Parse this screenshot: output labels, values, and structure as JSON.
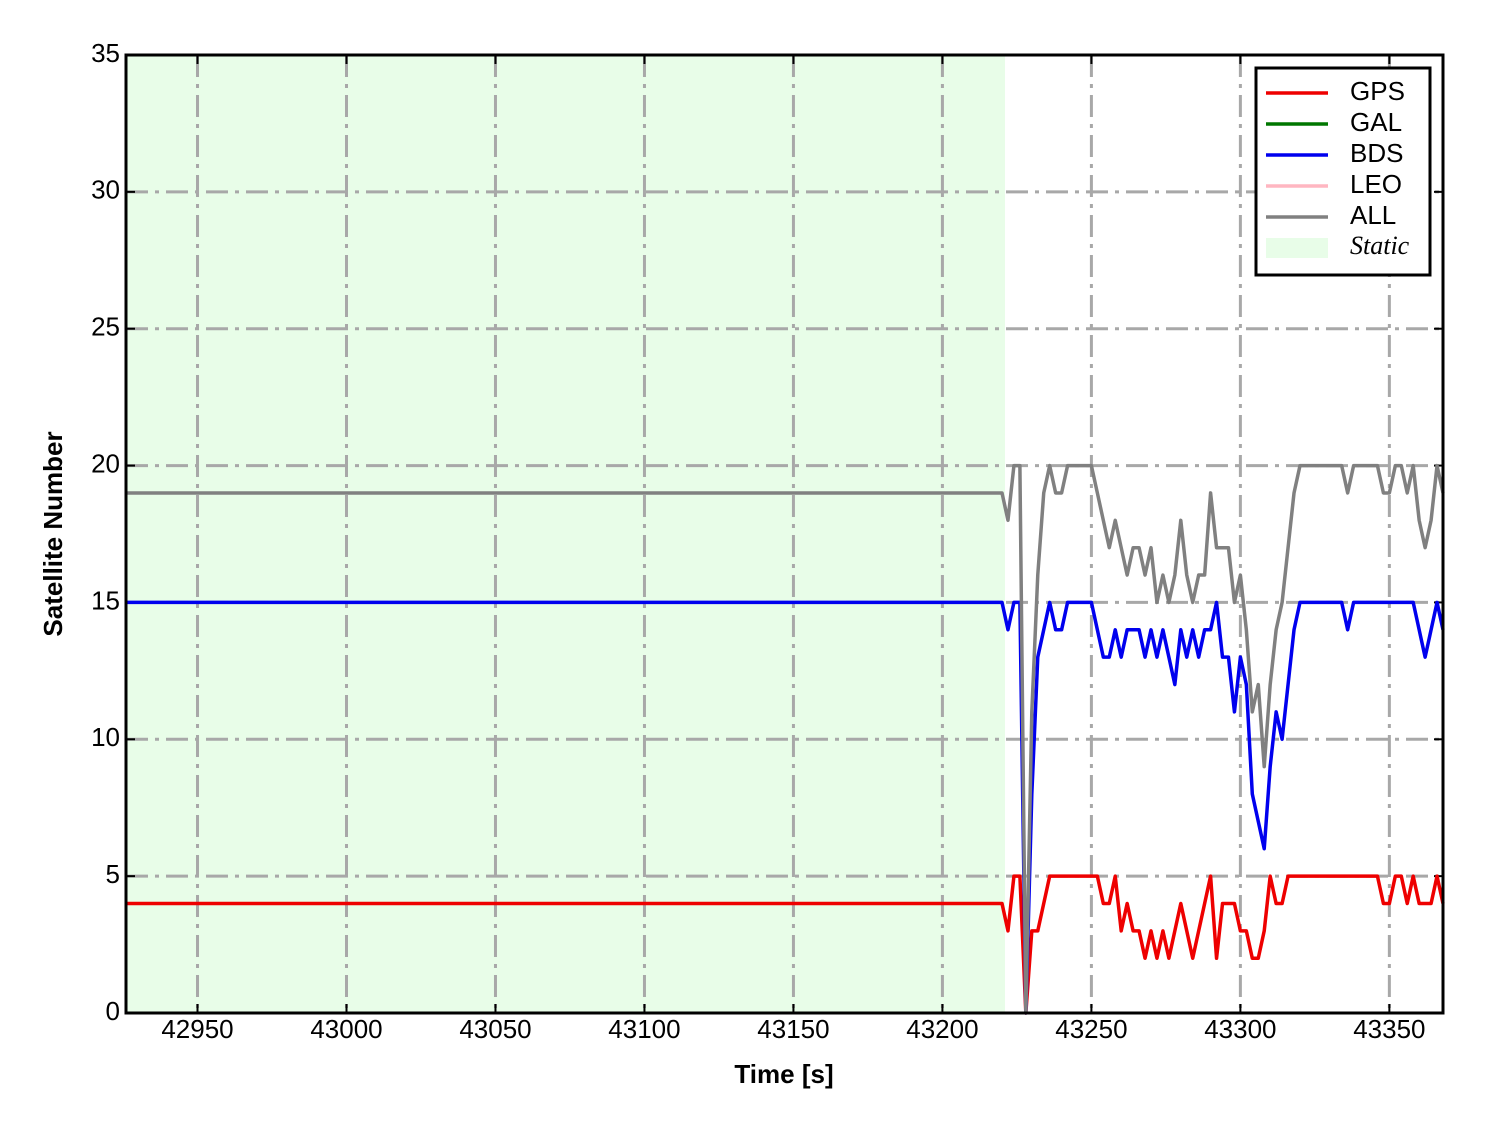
{
  "chart_data": {
    "type": "line",
    "xlabel": "Time [s]",
    "ylabel": "Satellite Number",
    "x": [
      42926,
      43220,
      43222,
      43224,
      43226,
      43228,
      43230,
      43232,
      43234,
      43236,
      43238,
      43240,
      43242,
      43244,
      43246,
      43248,
      43250,
      43252,
      43254,
      43256,
      43258,
      43260,
      43262,
      43264,
      43266,
      43268,
      43270,
      43272,
      43274,
      43276,
      43278,
      43280,
      43282,
      43284,
      43286,
      43288,
      43290,
      43292,
      43294,
      43296,
      43298,
      43300,
      43302,
      43304,
      43306,
      43308,
      43310,
      43312,
      43314,
      43316,
      43318,
      43320,
      43322,
      43324,
      43326,
      43328,
      43330,
      43332,
      43334,
      43336,
      43338,
      43340,
      43342,
      43344,
      43346,
      43348,
      43350,
      43352,
      43354,
      43356,
      43358,
      43360,
      43362,
      43364,
      43366,
      43368
    ],
    "series": [
      {
        "name": "GPS",
        "color": "#ee0000",
        "values": [
          4,
          4,
          3,
          5,
          5,
          0,
          3,
          3,
          4,
          5,
          5,
          5,
          5,
          5,
          5,
          5,
          5,
          5,
          4,
          4,
          5,
          3,
          4,
          3,
          3,
          2,
          3,
          2,
          3,
          2,
          3,
          4,
          3,
          2,
          3,
          4,
          5,
          2,
          4,
          4,
          4,
          3,
          3,
          2,
          2,
          3,
          5,
          4,
          4,
          5,
          5,
          5,
          5,
          5,
          5,
          5,
          5,
          5,
          5,
          5,
          5,
          5,
          5,
          5,
          5,
          4,
          4,
          5,
          5,
          4,
          5,
          4,
          4,
          4,
          5,
          4
        ]
      },
      {
        "name": "GAL",
        "color": "#007700",
        "values": [
          null,
          null,
          null,
          null,
          null,
          null,
          null,
          null,
          null,
          null,
          null,
          null,
          null,
          null,
          null,
          null,
          null,
          null,
          null,
          null,
          null,
          null,
          null,
          null,
          null,
          null,
          null,
          null,
          null,
          null,
          null,
          null,
          null,
          null,
          null,
          null,
          null,
          null,
          null,
          null,
          null,
          null,
          null,
          null,
          null,
          null,
          null,
          null,
          null,
          null,
          null,
          null,
          null,
          null,
          null,
          null,
          null,
          null,
          null,
          null,
          null,
          null,
          null,
          null,
          null,
          null,
          null,
          null,
          null,
          null,
          null,
          null,
          null,
          null,
          null,
          null
        ]
      },
      {
        "name": "BDS",
        "color": "#0000ee",
        "values": [
          15,
          15,
          14,
          15,
          15,
          0,
          8,
          13,
          14,
          15,
          14,
          14,
          15,
          15,
          15,
          15,
          15,
          14,
          13,
          13,
          14,
          13,
          14,
          14,
          14,
          13,
          14,
          13,
          14,
          13,
          12,
          14,
          13,
          14,
          13,
          14,
          14,
          15,
          13,
          13,
          11,
          13,
          12,
          8,
          7,
          6,
          9,
          11,
          10,
          12,
          14,
          15,
          15,
          15,
          15,
          15,
          15,
          15,
          15,
          14,
          15,
          15,
          15,
          15,
          15,
          15,
          15,
          15,
          15,
          15,
          15,
          14,
          13,
          14,
          15,
          14
        ]
      },
      {
        "name": "LEO",
        "color": "#ffb6c1",
        "values": [
          null,
          null,
          null,
          null,
          null,
          null,
          null,
          null,
          null,
          null,
          null,
          null,
          null,
          null,
          null,
          null,
          null,
          null,
          null,
          null,
          null,
          null,
          null,
          null,
          null,
          null,
          null,
          null,
          null,
          null,
          null,
          null,
          null,
          null,
          null,
          null,
          null,
          null,
          null,
          null,
          null,
          null,
          null,
          null,
          null,
          null,
          null,
          null,
          null,
          null,
          null,
          null,
          null,
          null,
          null,
          null,
          null,
          null,
          null,
          null,
          null,
          null,
          null,
          null,
          null,
          null,
          null,
          null,
          null,
          null,
          null,
          null,
          null,
          null,
          null,
          null
        ]
      },
      {
        "name": "ALL",
        "color": "#808080",
        "values": [
          19,
          19,
          18,
          20,
          20,
          0,
          11,
          16,
          19,
          20,
          19,
          19,
          20,
          20,
          20,
          20,
          20,
          19,
          18,
          17,
          18,
          17,
          16,
          17,
          17,
          16,
          17,
          15,
          16,
          15,
          16,
          18,
          16,
          15,
          16,
          16,
          19,
          17,
          17,
          17,
          15,
          16,
          14,
          11,
          12,
          9,
          12,
          14,
          15,
          17,
          19,
          20,
          20,
          20,
          20,
          20,
          20,
          20,
          20,
          19,
          20,
          20,
          20,
          20,
          20,
          19,
          19,
          20,
          20,
          19,
          20,
          18,
          17,
          18,
          20,
          19
        ]
      }
    ],
    "spans": [
      {
        "name": "Static",
        "color": "#e8fde8",
        "x": [
          42926,
          43221
        ]
      }
    ],
    "xlim": [
      42926,
      43368
    ],
    "xticks": [
      42950,
      43000,
      43050,
      43100,
      43150,
      43200,
      43250,
      43300,
      43350
    ],
    "ylim": [
      0,
      35
    ],
    "yticks": [
      0,
      5,
      10,
      15,
      20,
      25,
      30,
      35
    ],
    "grid": true,
    "legend": "upper right"
  }
}
